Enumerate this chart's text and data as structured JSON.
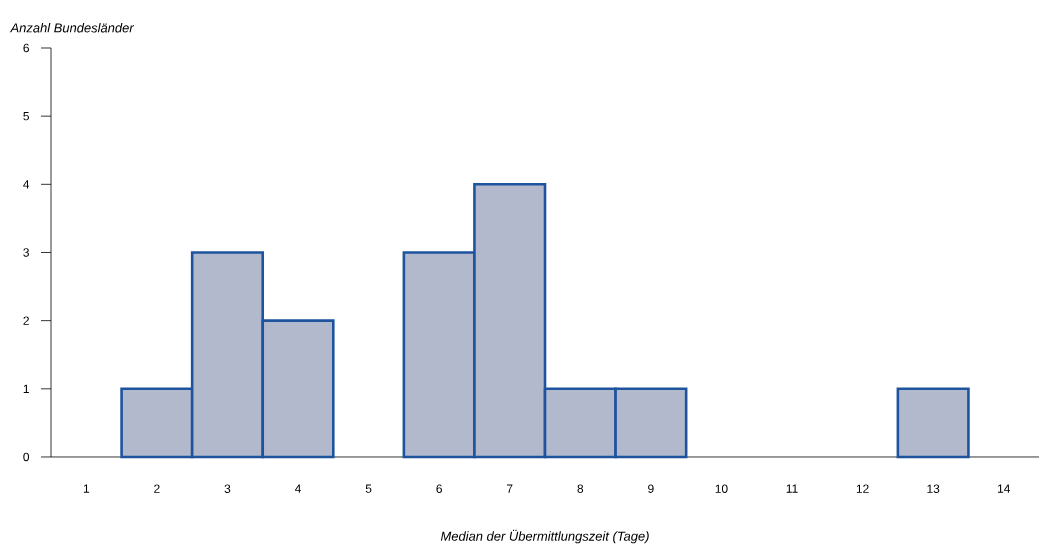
{
  "chart_data": {
    "type": "bar",
    "xlabel": "Median der Übermittlungszeit (Tage)",
    "ylabel": "Anzahl Bundesländer",
    "categories": [
      "1",
      "2",
      "3",
      "4",
      "5",
      "6",
      "7",
      "8",
      "9",
      "10",
      "11",
      "12",
      "13",
      "14"
    ],
    "values": [
      0,
      1,
      3,
      2,
      0,
      3,
      4,
      1,
      1,
      0,
      0,
      0,
      1,
      0
    ],
    "color": "#b3b9cd",
    "ylim": [
      0,
      6
    ],
    "yticks": [
      0,
      1,
      2,
      3,
      4,
      5,
      6
    ],
    "grid": false,
    "legend": false
  }
}
